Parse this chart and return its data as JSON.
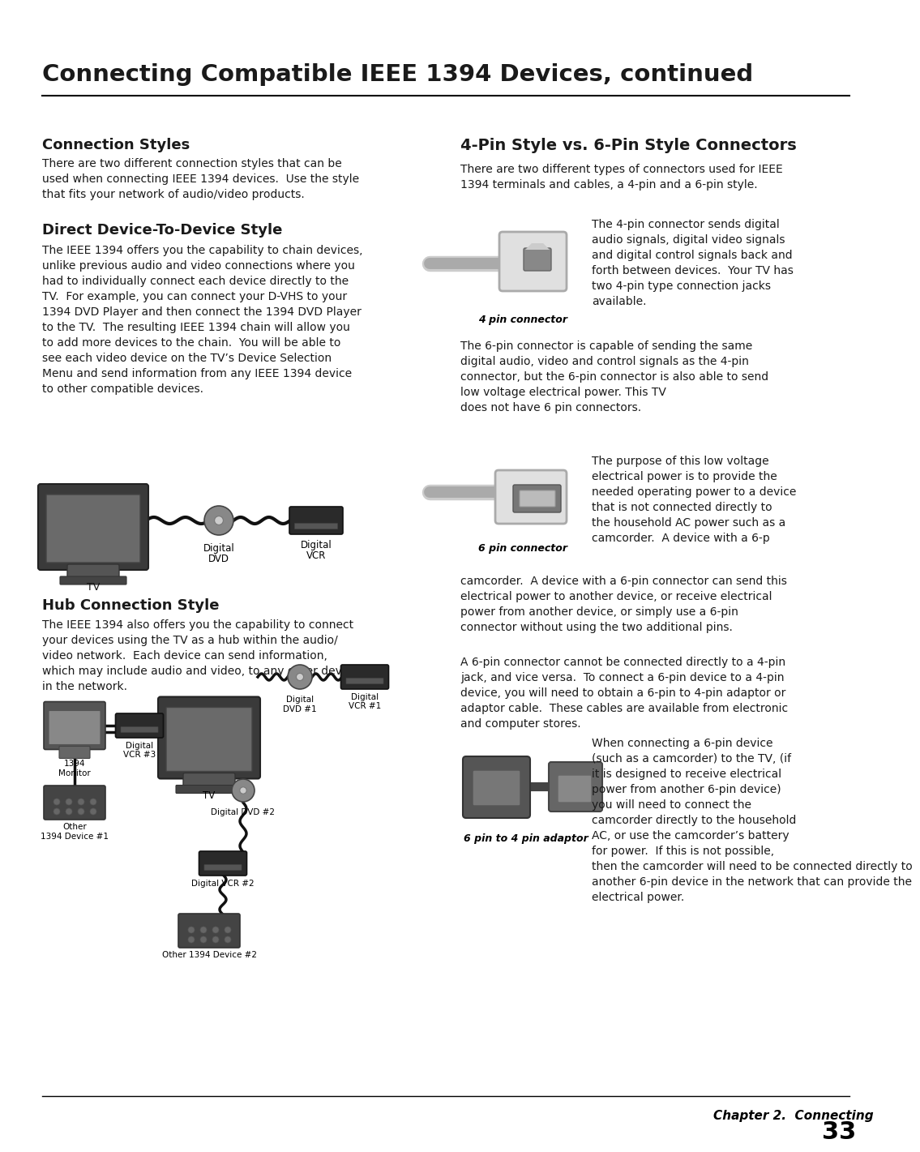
{
  "title": "Connecting Compatible IEEE 1394 Devices, continued",
  "bg_color": "#ffffff",
  "text_color": "#1a1a1a",
  "section1_heading": "Connection Styles",
  "section1_body": "There are two different connection styles that can be\nused when connecting IEEE 1394 devices.  Use the style\nthat fits your network of audio/video products.",
  "section2_heading": "Direct Device-To-Device Style",
  "section2_body": "The IEEE 1394 offers you the capability to chain devices,\nunlike previous audio and video connections where you\nhad to individually connect each device directly to the\nTV.  For example, you can connect your D-VHS to your\n1394 DVD Player and then connect the 1394 DVD Player\nto the TV.  The resulting IEEE 1394 chain will allow you\nto add more devices to the chain.  You will be able to\nsee each video device on the TV’s Device Selection\nMenu and send information from any IEEE 1394 device\nto other compatible devices.",
  "section3_heading": "Hub Connection Style",
  "section3_body": "The IEEE 1394 also offers you the capability to connect\nyour devices using the TV as a hub within the audio/\nvideo network.  Each device can send information,\nwhich may include audio and video, to any other device\nin the network.",
  "section4_heading": "4-Pin Style vs. 6-Pin Style Connectors",
  "section4_body1": "There are two different types of connectors used for IEEE\n1394 terminals and cables, a 4-pin and a 6-pin style.",
  "section4_body2": "The 4-pin connector sends digital\naudio signals, digital video signals\nand digital control signals back and\nforth between devices.  Your TV has\ntwo 4-pin type connection jacks\navailable.",
  "section4_label1": "4 pin connector",
  "section4_body3": "The 6-pin connector is capable of sending the same\ndigital audio, video and control signals as the 4-pin\nconnector, but the 6-pin connector is also able to send\nlow voltage electrical power. This TV\ndoes not have 6 pin connectors.",
  "section4_body4": "The purpose of this low voltage\nelectrical power is to provide the\nneeded operating power to a device\nthat is not connected directly to\nthe household AC power such as a\ncamcorder.  A device with a 6-pin connector can send this\nelectrical power to another device, or receive electrical\npower from another device, or simply use a 6-pin\nconnector without using the two additional pins.",
  "section4_label2": "6 pin connector",
  "section4_body5": "A 6-pin connector cannot be connected directly to a 4-pin\njack, and vice versa.  To connect a 6-pin device to a 4-pin\ndevice, you will need to obtain a 6-pin to 4-pin adaptor or\nadaptor cable.  These cables are available from electronic\nand computer stores.",
  "section4_body6": "When connecting a 6-pin device\n(such as a camcorder) to the TV, (if\nit is designed to receive electrical\npower from another 6-pin device)\nyou will need to connect the\ncamcorder directly to the household\nAC, or use the camcorder’s battery\nfor power.  If this is not possible,\nthen the camcorder will need to be connected directly to\nanother 6-pin device in the network that can provide the\nelectrical power.",
  "section4_label3": "6 pin to 4 pin adaptor",
  "footer_text": "Chapter 2.  Connecting",
  "footer_page": "33"
}
